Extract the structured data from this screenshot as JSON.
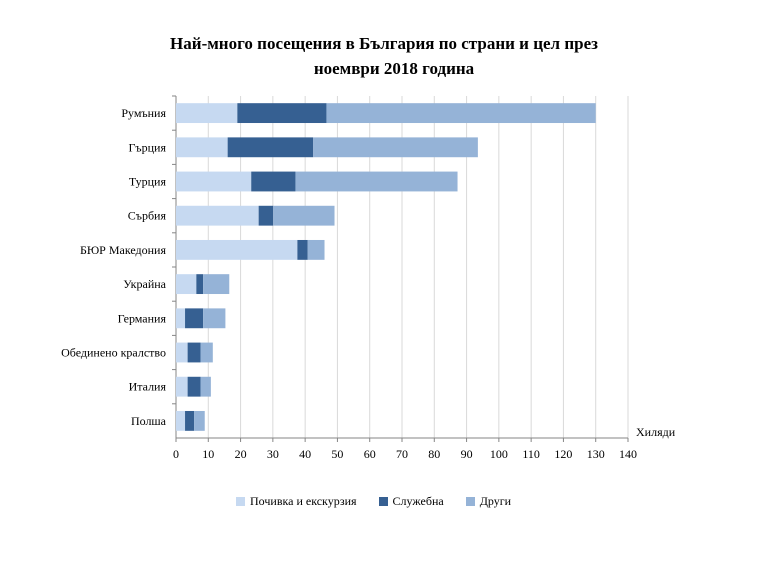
{
  "chart_data": {
    "type": "bar",
    "orientation": "horizontal",
    "stacked": true,
    "title_line1": "Най-много посещения в България по страни и цел през",
    "title_line2": "ноември 2018 година",
    "xlabel": "Хиляди",
    "ylabel": "",
    "xlim": [
      0,
      140
    ],
    "xticks": [
      "0",
      "10",
      "20",
      "30",
      "40",
      "50",
      "60",
      "70",
      "80",
      "90",
      "100",
      "110",
      "120",
      "130",
      "140"
    ],
    "grid": "vertical",
    "legend_position": "bottom",
    "categories": [
      "Румъния",
      "Гърция",
      "Турция",
      "Сърбия",
      "БЮР Македония",
      "Украйна",
      "Германия",
      "Обединено кралство",
      "Италия",
      "Полша"
    ],
    "series": [
      {
        "name": "Почивка и екскурзия",
        "color": "#c6d9f1",
        "values": [
          19,
          16,
          23.3,
          25.6,
          37.6,
          6.3,
          2.8,
          3.6,
          3.6,
          2.8
        ]
      },
      {
        "name": "Служебна",
        "color": "#366092",
        "values": [
          27.6,
          26.5,
          13.7,
          4.5,
          3.2,
          2.1,
          5.6,
          4,
          4,
          2.8
        ]
      },
      {
        "name": "Други",
        "color": "#95b3d7",
        "values": [
          83.4,
          51,
          50.2,
          19,
          5.2,
          8.1,
          6.9,
          3.8,
          3.2,
          3.3
        ]
      }
    ]
  }
}
